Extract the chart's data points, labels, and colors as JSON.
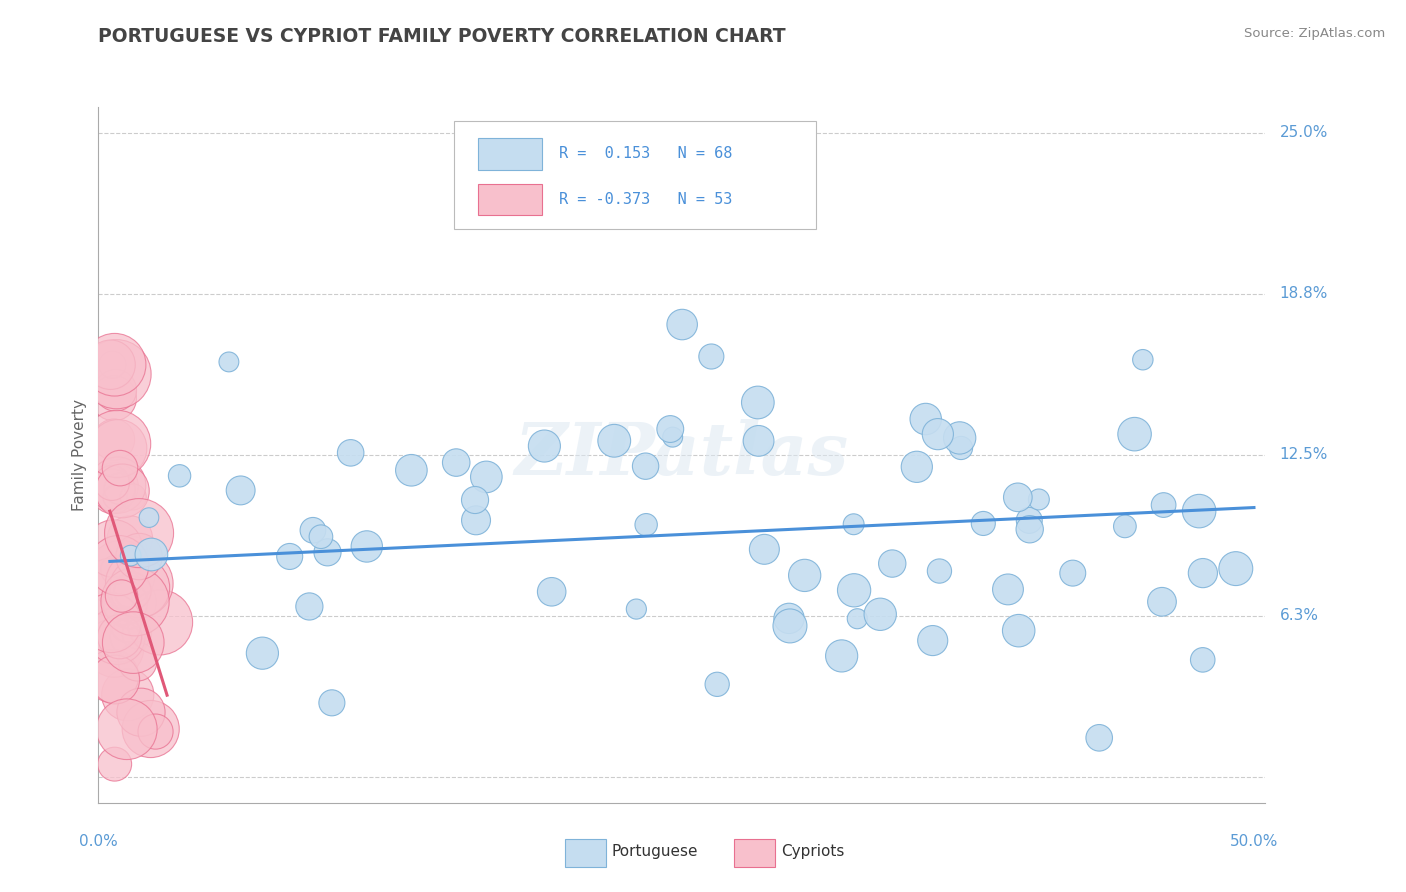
{
  "title": "PORTUGUESE VS CYPRIOT FAMILY POVERTY CORRELATION CHART",
  "source": "Source: ZipAtlas.com",
  "ylabel": "Family Poverty",
  "ytick_vals": [
    0.0,
    0.0625,
    0.125,
    0.1875,
    0.25
  ],
  "ytick_labels": [
    "",
    "6.3%",
    "12.5%",
    "18.8%",
    "25.0%"
  ],
  "xlim": [
    0.0,
    0.5
  ],
  "ylim": [
    0.0,
    0.25
  ],
  "R_portuguese": 0.153,
  "N_portuguese": 68,
  "R_cypriot": -0.373,
  "N_cypriot": 53,
  "color_portuguese_fill": "#c5ddf0",
  "color_portuguese_edge": "#7fb3d9",
  "color_cypriot_fill": "#f8c0cc",
  "color_cypriot_edge": "#e87090",
  "line_color_portuguese": "#4a90d9",
  "line_color_cypriot": "#e05878",
  "watermark": "ZIPatlas",
  "title_color": "#444444",
  "source_color": "#888888",
  "axis_label_color": "#5b9bd5",
  "ylabel_color": "#666666"
}
